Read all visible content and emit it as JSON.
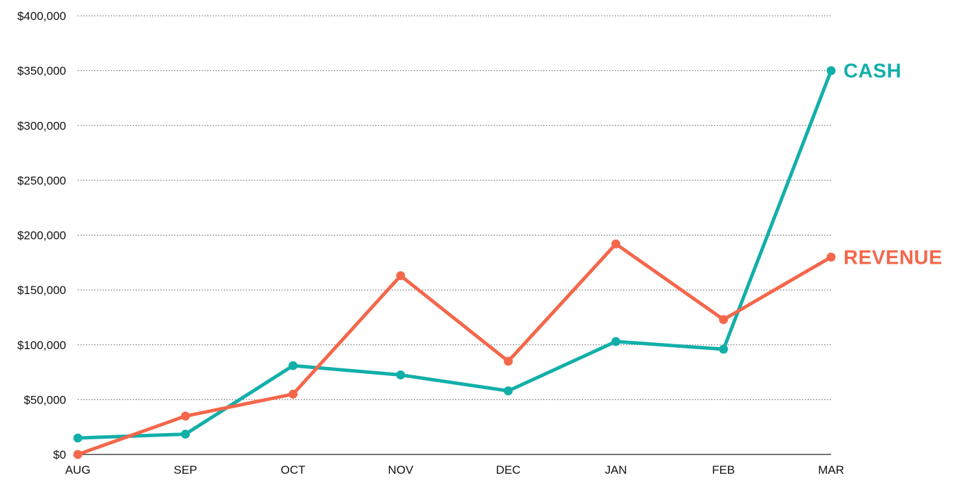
{
  "chart_data": {
    "type": "line",
    "title": "",
    "xlabel": "",
    "ylabel": "",
    "categories": [
      "AUG",
      "SEP",
      "OCT",
      "NOV",
      "DEC",
      "JAN",
      "FEB",
      "MAR"
    ],
    "ylim": [
      0,
      400000
    ],
    "yticks": [
      0,
      50000,
      100000,
      150000,
      200000,
      250000,
      300000,
      350000,
      400000
    ],
    "ytick_labels": [
      "$0",
      "$50,000",
      "$100,000",
      "$150,000",
      "$200,000",
      "$250,000",
      "$300,000",
      "$350,000",
      "$400,000"
    ],
    "grid": "horizontal dotted",
    "legend": "direct labels at right end of lines",
    "series": [
      {
        "name": "CASH",
        "color": "#12AFA9",
        "values": [
          15000,
          18500,
          81000,
          72500,
          58000,
          103000,
          96000,
          350000
        ]
      },
      {
        "name": "REVENUE",
        "color": "#F4674B",
        "values": [
          0,
          35000,
          55000,
          163000,
          85000,
          192000,
          123000,
          180000
        ]
      }
    ]
  }
}
